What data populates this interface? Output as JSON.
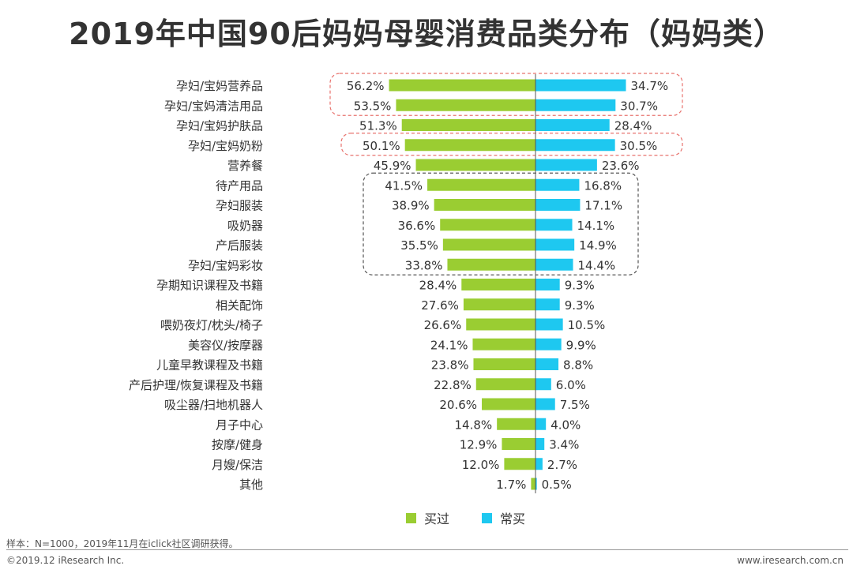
{
  "title": "2019年中国90后妈妈母婴消费品类分布（妈妈类）",
  "footer": {
    "note": "样本：N=1000，2019年11月在iclick社区调研获得。",
    "copyright": "©2019.12 iResearch Inc.",
    "site": "www.iresearch.com.cn"
  },
  "colors": {
    "bought": "#9acd32",
    "frequent": "#1ec8f0"
  },
  "chart_data": {
    "type": "bar",
    "orientation": "horizontal-diverging",
    "title": "2019年中国90后妈妈母婴消费品类分布（妈妈类）",
    "categories": [
      "孕妇/宝妈营养品",
      "孕妇/宝妈清洁用品",
      "孕妇/宝妈护肤品",
      "孕妇/宝妈奶粉",
      "营养餐",
      "待产用品",
      "孕妇服装",
      "吸奶器",
      "产后服装",
      "孕妇/宝妈彩妆",
      "孕期知识课程及书籍",
      "相关配饰",
      "喂奶夜灯/枕头/椅子",
      "美容仪/按摩器",
      "儿童早教课程及书籍",
      "产后护理/恢复课程及书籍",
      "吸尘器/扫地机器人",
      "月子中心",
      "按摩/健身",
      "月嫂/保洁",
      "其他"
    ],
    "series": [
      {
        "name": "买过",
        "side": "left",
        "color": "#9acd32",
        "values": [
          56.2,
          53.5,
          51.3,
          50.1,
          45.9,
          41.5,
          38.9,
          36.6,
          35.5,
          33.8,
          28.4,
          27.6,
          26.6,
          24.1,
          23.8,
          22.8,
          20.6,
          14.8,
          12.9,
          12.0,
          1.7
        ],
        "labels": [
          "56.2%",
          "53.5%",
          "51.3%",
          "50.1%",
          "45.9%",
          "41.5%",
          "38.9%",
          "36.6%",
          "35.5%",
          "33.8%",
          "28.4%",
          "27.6%",
          "26.6%",
          "24.1%",
          "23.8%",
          "22.8%",
          "20.6%",
          "14.8%",
          "12.9%",
          "12.0%",
          "1.7%"
        ]
      },
      {
        "name": "常买",
        "side": "right",
        "color": "#1ec8f0",
        "values": [
          34.7,
          30.7,
          28.4,
          30.5,
          23.6,
          16.8,
          17.1,
          14.1,
          14.9,
          14.4,
          9.3,
          9.3,
          10.5,
          9.9,
          8.8,
          6.0,
          7.5,
          4.0,
          3.4,
          2.7,
          0.5
        ],
        "labels": [
          "34.7%",
          "30.7%",
          "28.4%",
          "30.5%",
          "23.6%",
          "16.8%",
          "17.1%",
          "14.1%",
          "14.9%",
          "14.4%",
          "9.3%",
          "9.3%",
          "10.5%",
          "9.9%",
          "8.8%",
          "6.0%",
          "7.5%",
          "4.0%",
          "3.4%",
          "2.7%",
          "0.5%"
        ]
      }
    ],
    "highlights": [
      {
        "style": "red-dashed",
        "from": 0,
        "to": 1
      },
      {
        "style": "red-dashed",
        "from": 3,
        "to": 3
      },
      {
        "style": "gray-dashed",
        "from": 5,
        "to": 9
      }
    ],
    "legend": [
      "买过",
      "常买"
    ],
    "legend_position": "bottom"
  }
}
